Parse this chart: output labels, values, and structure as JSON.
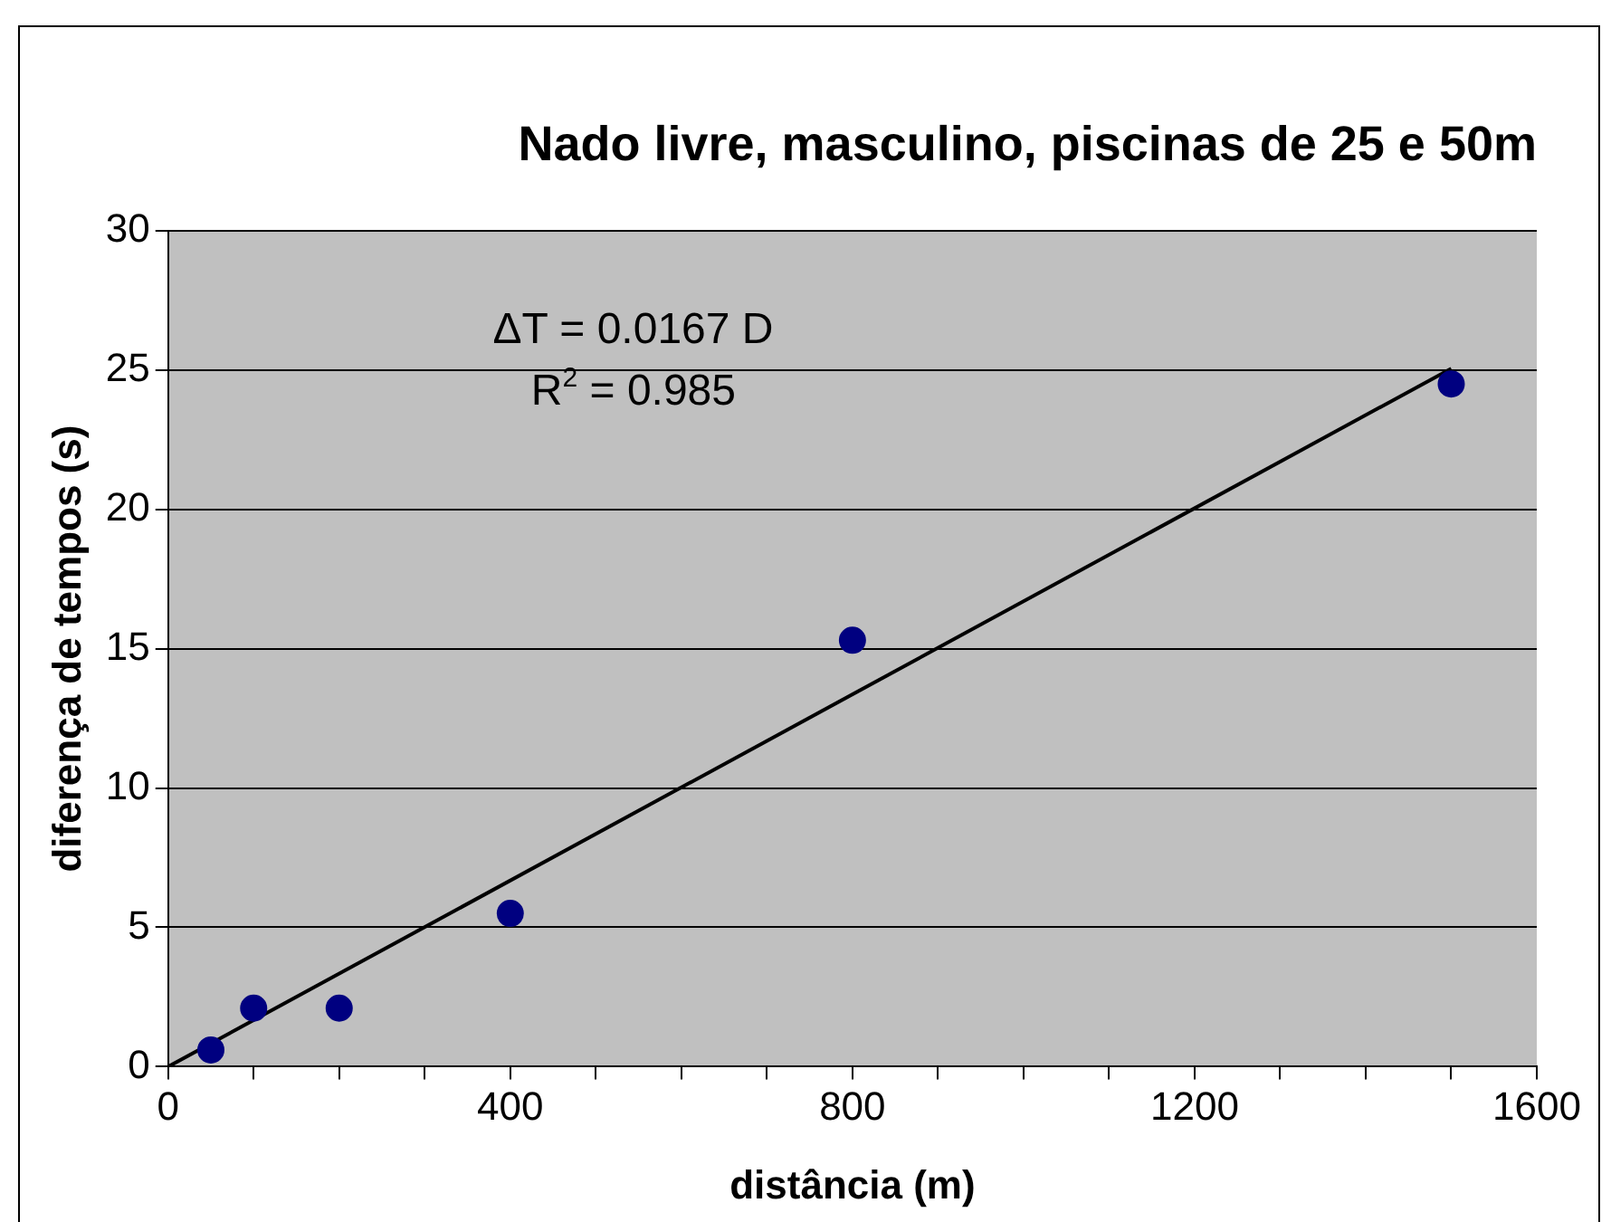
{
  "chart_data": {
    "type": "scatter",
    "title": "Nado livre, masculino, piscinas de 25 e 50m",
    "xlabel": "distância (m)",
    "ylabel": "diferença de tempos (s)",
    "xlim": [
      0,
      1600
    ],
    "ylim": [
      0,
      30
    ],
    "xticks": [
      0,
      {
        "value": 100,
        "label": null
      },
      {
        "value": 200,
        "label": null
      },
      {
        "value": 300,
        "label": null
      },
      400,
      {
        "value": 500,
        "label": null
      },
      {
        "value": 600,
        "label": null
      },
      {
        "value": 700,
        "label": null
      },
      800,
      {
        "value": 900,
        "label": null
      },
      {
        "value": 1000,
        "label": null
      },
      {
        "value": 1100,
        "label": null
      },
      1200,
      {
        "value": 1300,
        "label": null
      },
      {
        "value": 1400,
        "label": null
      },
      {
        "value": 1500,
        "label": null
      },
      1600
    ],
    "yticks": [
      0,
      5,
      10,
      15,
      20,
      25,
      30
    ],
    "grid": "y",
    "legend": false,
    "marker": "circle",
    "series": [
      {
        "color": "#000080",
        "x": [
          50,
          100,
          200,
          400,
          800,
          1500
        ],
        "values": [
          0.6,
          2.1,
          2.1,
          5.5,
          15.3,
          24.5
        ]
      },
      {
        "type": "line",
        "color": "#000000",
        "marker": "none",
        "x": [
          0,
          1500
        ],
        "values": [
          0,
          25.05
        ]
      }
    ],
    "annotations": [
      "ΔT = 0.0167 D",
      "R$^{2}$ = 0.985"
    ]
  }
}
